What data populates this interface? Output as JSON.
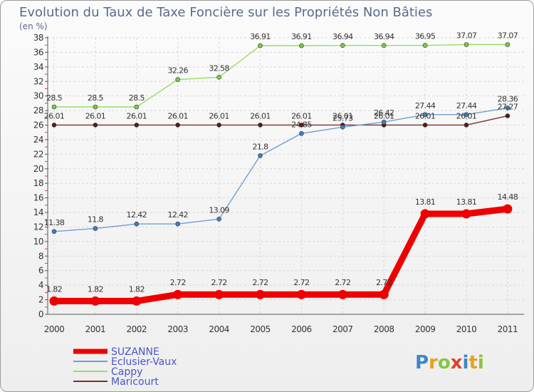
{
  "chart_data": {
    "type": "line",
    "title": "Evolution du Taux de Taxe Foncière sur les Propriétés Non Bâties",
    "subtitle": "(en %)",
    "categories": [
      "2000",
      "2001",
      "2002",
      "2003",
      "2004",
      "2005",
      "2006",
      "2007",
      "2008",
      "2009",
      "2010",
      "2011"
    ],
    "ylim": [
      0,
      38
    ],
    "yticks": [
      "0",
      "2",
      "4",
      "6",
      "8",
      "10",
      "12",
      "14",
      "16",
      "18",
      "20",
      "22",
      "24",
      "26",
      "28",
      "30",
      "32",
      "34",
      "36",
      "38"
    ],
    "grid": true,
    "series": [
      {
        "name": "SUZANNE",
        "color": "#ee0000",
        "values": [
          1.82,
          1.82,
          1.82,
          2.72,
          2.72,
          2.72,
          2.72,
          2.72,
          2.72,
          13.81,
          13.81,
          14.48
        ],
        "labels": [
          "1.82",
          "1.82",
          "1.82",
          "2.72",
          "2.72",
          "2.72",
          "2.72",
          "2.72",
          "2.72",
          "13.81",
          "13.81",
          "14.48"
        ]
      },
      {
        "name": "Eclusier-Vaux",
        "color": "#6f9fd0",
        "marker": "#3a7fc4",
        "values": [
          11.38,
          11.8,
          12.42,
          12.42,
          13.09,
          21.8,
          24.85,
          25.73,
          26.42,
          27.44,
          27.44,
          28.36
        ],
        "labels": [
          "11.38",
          "11.8",
          "12.42",
          "12.42",
          "13.09",
          "21.8",
          "24.85",
          "25.73",
          "26.42",
          "27.44",
          "27.44",
          "28.36"
        ]
      },
      {
        "name": "Cappy",
        "color": "#99dd66",
        "marker": "#77cc44",
        "values": [
          28.5,
          28.5,
          28.5,
          32.26,
          32.58,
          36.91,
          36.91,
          36.94,
          36.94,
          36.95,
          37.07,
          37.07
        ],
        "labels": [
          "28.5",
          "28.5",
          "28.5",
          "32.26",
          "32.58",
          "36.91",
          "36.91",
          "36.94",
          "36.94",
          "36.95",
          "37.07",
          "37.07"
        ]
      },
      {
        "name": "Maricourt",
        "color": "#7a3030",
        "marker": "#551c1c",
        "values": [
          26.01,
          26.01,
          26.01,
          26.01,
          26.01,
          26.01,
          26.01,
          26.01,
          26.01,
          26.01,
          26.01,
          27.27
        ],
        "labels": [
          "26.01",
          "26.01",
          "26.01",
          "26.01",
          "26.01",
          "26.01",
          "26.01",
          "26.01",
          "26.01",
          "26.01",
          "26.01",
          "27.27"
        ]
      }
    ],
    "legend_position": "bottom-left"
  },
  "logo": {
    "text": "Proxiti",
    "colors": [
      "#3f86c8",
      "#e8a020",
      "#8ac43f",
      "#e0402a"
    ]
  }
}
